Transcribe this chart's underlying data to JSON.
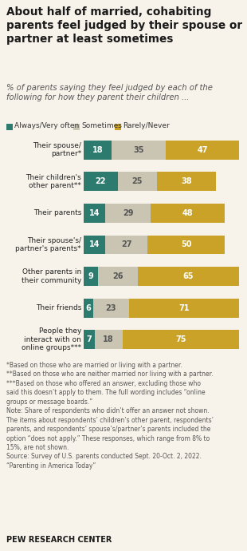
{
  "title": "About half of married, cohabiting\nparents feel judged by their spouse or\npartner at least sometimes",
  "subtitle": "% of parents saying they feel judged by each of the\nfollowing for how they parent their children ...",
  "categories": [
    "Their spouse/\npartner*",
    "Their children's\nother parent**",
    "Their parents",
    "Their spouse's/\npartner's parents*",
    "Other parents in\ntheir community",
    "Their friends",
    "People they\ninteract with on\nonline groups***"
  ],
  "always_very_often": [
    18,
    22,
    14,
    14,
    9,
    6,
    7
  ],
  "sometimes": [
    35,
    25,
    29,
    27,
    26,
    23,
    18
  ],
  "rarely_never": [
    47,
    38,
    48,
    50,
    65,
    71,
    75
  ],
  "color_always": "#2d7a6e",
  "color_sometimes": "#c9c5b2",
  "color_rarely": "#c9a227",
  "legend_labels": [
    "Always/Very often",
    "Sometimes",
    "Rarely/Never"
  ],
  "footnote1": "*Based on those who are married or living with a partner.",
  "footnote2": "**Based on those who are neither married nor living with a partner.",
  "footnote3": "***Based on those who offered an answer, excluding those who\nsaid this doesn’t apply to them. The full wording includes “online\ngroups or message boards.”",
  "footnote4": "Note: Share of respondents who didn’t offer an answer not shown.\nThe items about respondents’ children’s other parent, respondents’\nparents, and respondents’ spouse’s/partner’s parents included the\noption “does not apply.” These responses, which range from 8% to\n15%, are not shown.",
  "footnote5": "Source: Survey of U.S. parents conducted Sept. 20-Oct. 2, 2022.\n“Parenting in America Today”",
  "source_label": "PEW RESEARCH CENTER",
  "background_color": "#f7f3ea"
}
